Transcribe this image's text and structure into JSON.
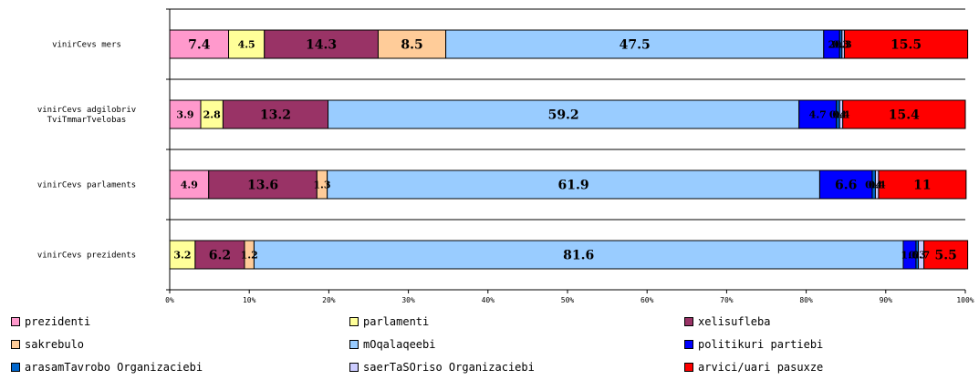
{
  "chart_data": {
    "type": "bar",
    "orientation": "horizontal",
    "stacked": true,
    "percent": true,
    "categories": [
      "vinirCevs mers",
      "vinirCevs adgilobriv TviTmmarTvelobas",
      "vinirCevs parlaments",
      "vinirCevs prezidents"
    ],
    "category_lines": [
      [
        "vinirCevs mers"
      ],
      [
        "vinirCevs adgilobriv",
        "TviTmmarTvelobas"
      ],
      [
        "vinirCevs parlaments"
      ],
      [
        "vinirCevs prezidents"
      ]
    ],
    "series": [
      {
        "name": "prezidenti",
        "color": "#ff99cc",
        "values": [
          7.4,
          3.9,
          4.9,
          0
        ]
      },
      {
        "name": "parlamenti",
        "color": "#ffff99",
        "values": [
          4.5,
          2.8,
          0,
          3.2
        ]
      },
      {
        "name": "xelisufleba",
        "color": "#993366",
        "values": [
          14.3,
          13.2,
          13.6,
          6.2
        ]
      },
      {
        "name": "sakrebulo",
        "color": "#ffcc99",
        "values": [
          8.5,
          0,
          1.3,
          1.2
        ]
      },
      {
        "name": "mOqalaqeebi",
        "color": "#99ccff",
        "values": [
          47.5,
          59.2,
          61.9,
          81.6
        ]
      },
      {
        "name": "politikuri partiebi",
        "color": "#0000ff",
        "values": [
          2.0,
          4.7,
          6.6,
          1.6
        ]
      },
      {
        "name": "arasamTavrobo Organizaciebi",
        "color": "#0066cc",
        "values": [
          0.3,
          0.4,
          0.4,
          0.3
        ]
      },
      {
        "name": "saerTaSOriso Organizaciebi",
        "color": "#ccccff",
        "values": [
          0.3,
          0.4,
          0.4,
          0.7
        ]
      },
      {
        "name": "arvici/uari pasuxze",
        "color": "#ff0000",
        "values": [
          15.5,
          15.4,
          11,
          5.5
        ]
      }
    ],
    "data_labels": [
      [
        "7.4",
        "4.5",
        "14.3",
        "8.5",
        "47.5",
        "2",
        "0.3",
        "0.3",
        "15.5"
      ],
      [
        "3.9",
        "2.8",
        "13.2",
        "",
        "59.2",
        "4.7",
        "0.4",
        "0.4",
        "15.4"
      ],
      [
        "4.9",
        "",
        "13.6",
        "1.3",
        "61.9",
        "6.6",
        "0.4",
        "0.4",
        "11"
      ],
      [
        "",
        "3.2",
        "6.2",
        "1.2",
        "81.6",
        "1.6",
        "0.3",
        "0.7",
        "5.5"
      ]
    ],
    "xlim": [
      0,
      100
    ],
    "xticks": [
      "0%",
      "10%",
      "20%",
      "30%",
      "40%",
      "50%",
      "60%",
      "70%",
      "80%",
      "90%",
      "100%"
    ],
    "grid": true,
    "legend_position": "bottom"
  }
}
